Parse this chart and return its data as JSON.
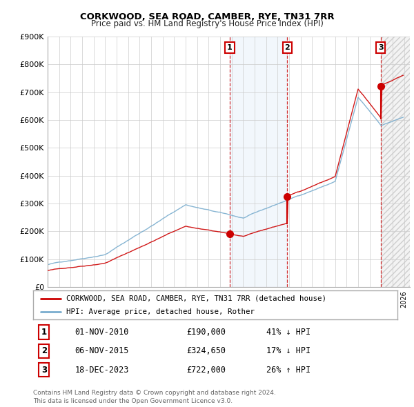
{
  "title": "CORKWOOD, SEA ROAD, CAMBER, RYE, TN31 7RR",
  "subtitle": "Price paid vs. HM Land Registry's House Price Index (HPI)",
  "ylim": [
    0,
    900000
  ],
  "yticks": [
    0,
    100000,
    200000,
    300000,
    400000,
    500000,
    600000,
    700000,
    800000,
    900000
  ],
  "ytick_labels": [
    "£0",
    "£100K",
    "£200K",
    "£300K",
    "£400K",
    "£500K",
    "£600K",
    "£700K",
    "£800K",
    "£900K"
  ],
  "sale_year_nums": [
    2010.836,
    2015.844,
    2023.961
  ],
  "sale_prices": [
    190000,
    324650,
    722000
  ],
  "sale_labels": [
    "1",
    "2",
    "3"
  ],
  "sale_annotations": [
    "01-NOV-2010",
    "06-NOV-2015",
    "18-DEC-2023"
  ],
  "sale_price_labels": [
    "£190,000",
    "£324,650",
    "£722,000"
  ],
  "sale_hpi_labels": [
    "41% ↓ HPI",
    "17% ↓ HPI",
    "26% ↑ HPI"
  ],
  "red_color": "#cc0000",
  "blue_color": "#7aadce",
  "legend_label_red": "CORKWOOD, SEA ROAD, CAMBER, RYE, TN31 7RR (detached house)",
  "legend_label_blue": "HPI: Average price, detached house, Rother",
  "footer1": "Contains HM Land Registry data © Crown copyright and database right 2024.",
  "footer2": "This data is licensed under the Open Government Licence v3.0.",
  "background_color": "#ffffff",
  "plot_bg_color": "#ffffff",
  "grid_color": "#cccccc",
  "xmin": 1995,
  "xmax": 2026.5
}
